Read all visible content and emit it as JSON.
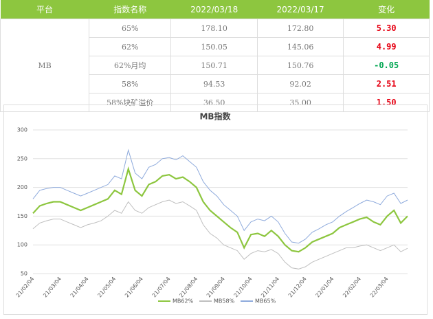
{
  "table": {
    "header": [
      "平台",
      "指数名称",
      "2022/03/18",
      "2022/03/17",
      "变化"
    ],
    "platform": "MB",
    "rows": [
      [
        "65%",
        "178.10",
        "172.80",
        "5.30"
      ],
      [
        "62%",
        "150.05",
        "145.06",
        "4.99"
      ],
      [
        "62%月均",
        "150.71",
        "150.76",
        "-0.05"
      ],
      [
        "58%",
        "94.53",
        "92.02",
        "2.51"
      ],
      [
        "58%块矿溢价",
        "36.50",
        "35.00",
        "1.50"
      ]
    ]
  },
  "chart_data": {
    "type": "line",
    "title": "MB指数",
    "categories": [
      "21/02/04",
      null,
      null,
      null,
      "21/03/04",
      null,
      null,
      null,
      "21/04/04",
      null,
      null,
      null,
      "21/05/04",
      null,
      null,
      null,
      "21/06/04",
      null,
      null,
      null,
      "21/07/04",
      null,
      null,
      null,
      "21/08/04",
      null,
      null,
      null,
      "21/09/04",
      null,
      null,
      null,
      "21/10/04",
      null,
      null,
      null,
      "21/11/04",
      null,
      null,
      null,
      "21/12/04",
      null,
      null,
      null,
      "22/01/04",
      null,
      null,
      null,
      "22/02/04",
      null,
      null,
      null,
      "22/03/04",
      null,
      null,
      null
    ],
    "series": [
      {
        "name": "MB62%",
        "color": "#8dc63f",
        "values": [
          155,
          168,
          172,
          175,
          175,
          170,
          165,
          160,
          165,
          170,
          175,
          180,
          195,
          188,
          232,
          195,
          185,
          205,
          210,
          220,
          222,
          215,
          218,
          210,
          200,
          175,
          160,
          150,
          140,
          130,
          122,
          95,
          118,
          120,
          115,
          125,
          115,
          100,
          90,
          88,
          95,
          105,
          110,
          115,
          120,
          130,
          135,
          140,
          145,
          148,
          140,
          135,
          150,
          160,
          138,
          150
        ]
      },
      {
        "name": "MB58%",
        "color": "#bfbfbf",
        "values": [
          128,
          138,
          142,
          145,
          145,
          140,
          135,
          130,
          135,
          138,
          142,
          150,
          160,
          155,
          175,
          160,
          155,
          165,
          170,
          175,
          178,
          172,
          175,
          168,
          160,
          135,
          120,
          112,
          100,
          95,
          90,
          75,
          85,
          90,
          88,
          92,
          85,
          70,
          60,
          58,
          62,
          70,
          75,
          80,
          85,
          90,
          95,
          95,
          98,
          100,
          95,
          90,
          95,
          100,
          88,
          94
        ]
      },
      {
        "name": "MB65%",
        "color": "#8eaadc",
        "values": [
          180,
          195,
          198,
          200,
          200,
          195,
          190,
          185,
          190,
          195,
          200,
          205,
          220,
          215,
          265,
          225,
          215,
          235,
          240,
          250,
          252,
          248,
          255,
          245,
          235,
          210,
          195,
          185,
          170,
          160,
          150,
          125,
          140,
          145,
          142,
          150,
          140,
          120,
          105,
          103,
          110,
          122,
          128,
          135,
          140,
          150,
          158,
          165,
          172,
          178,
          175,
          170,
          185,
          190,
          172,
          178
        ]
      }
    ],
    "ylim": [
      50,
      300
    ],
    "yticks": [
      50,
      100,
      150,
      200,
      250,
      300
    ],
    "grid": true,
    "legend": "bottom"
  }
}
